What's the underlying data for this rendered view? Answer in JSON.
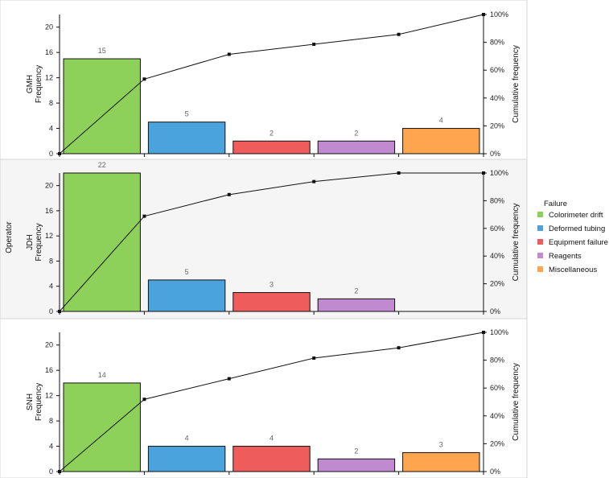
{
  "chart_data": {
    "type": "bar",
    "group_label": "Operator",
    "y_right_label": "Cumulative frequency",
    "categories": [
      "Colorimeter drift",
      "Deformed tubing",
      "Equipment failure",
      "Reagents",
      "Miscellaneous"
    ],
    "legend": {
      "title": "Failure",
      "position": "right",
      "items": [
        {
          "label": "Colorimeter drift",
          "color": "#8dd15a"
        },
        {
          "label": "Deformed tubing",
          "color": "#4aa3dd"
        },
        {
          "label": "Equipment failure",
          "color": "#ef5c5c"
        },
        {
          "label": "Reagents",
          "color": "#c08ad0"
        },
        {
          "label": "Miscellaneous",
          "color": "#ffa54d"
        }
      ]
    },
    "panels": [
      {
        "operator": "GMH",
        "ylabel": "Frequency",
        "values": [
          15,
          5,
          2,
          2,
          4
        ],
        "cumulative_percent": [
          53.6,
          71.4,
          78.6,
          85.7,
          100
        ],
        "ylim": [
          0,
          22
        ],
        "yticks": [
          0,
          4,
          8,
          12,
          16,
          20
        ],
        "shaded": false
      },
      {
        "operator": "JDH",
        "ylabel": "Frequency",
        "values": [
          22,
          5,
          3,
          2,
          0
        ],
        "cumulative_percent": [
          68.8,
          84.4,
          93.8,
          100,
          100
        ],
        "ylim": [
          0,
          22
        ],
        "yticks": [
          0,
          4,
          8,
          12,
          16,
          20
        ],
        "shaded": true
      },
      {
        "operator": "SNH",
        "ylabel": "Frequency",
        "values": [
          14,
          4,
          4,
          2,
          3
        ],
        "cumulative_percent": [
          51.9,
          66.7,
          81.5,
          88.9,
          100
        ],
        "ylim": [
          0,
          22
        ],
        "yticks": [
          0,
          4,
          8,
          12,
          16,
          20
        ],
        "shaded": false
      }
    ],
    "y_right_ticks": [
      "0%",
      "20%",
      "40%",
      "60%",
      "80%",
      "100%"
    ],
    "y_right_tick_values": [
      0,
      20,
      40,
      60,
      80,
      100
    ],
    "grid": false
  }
}
